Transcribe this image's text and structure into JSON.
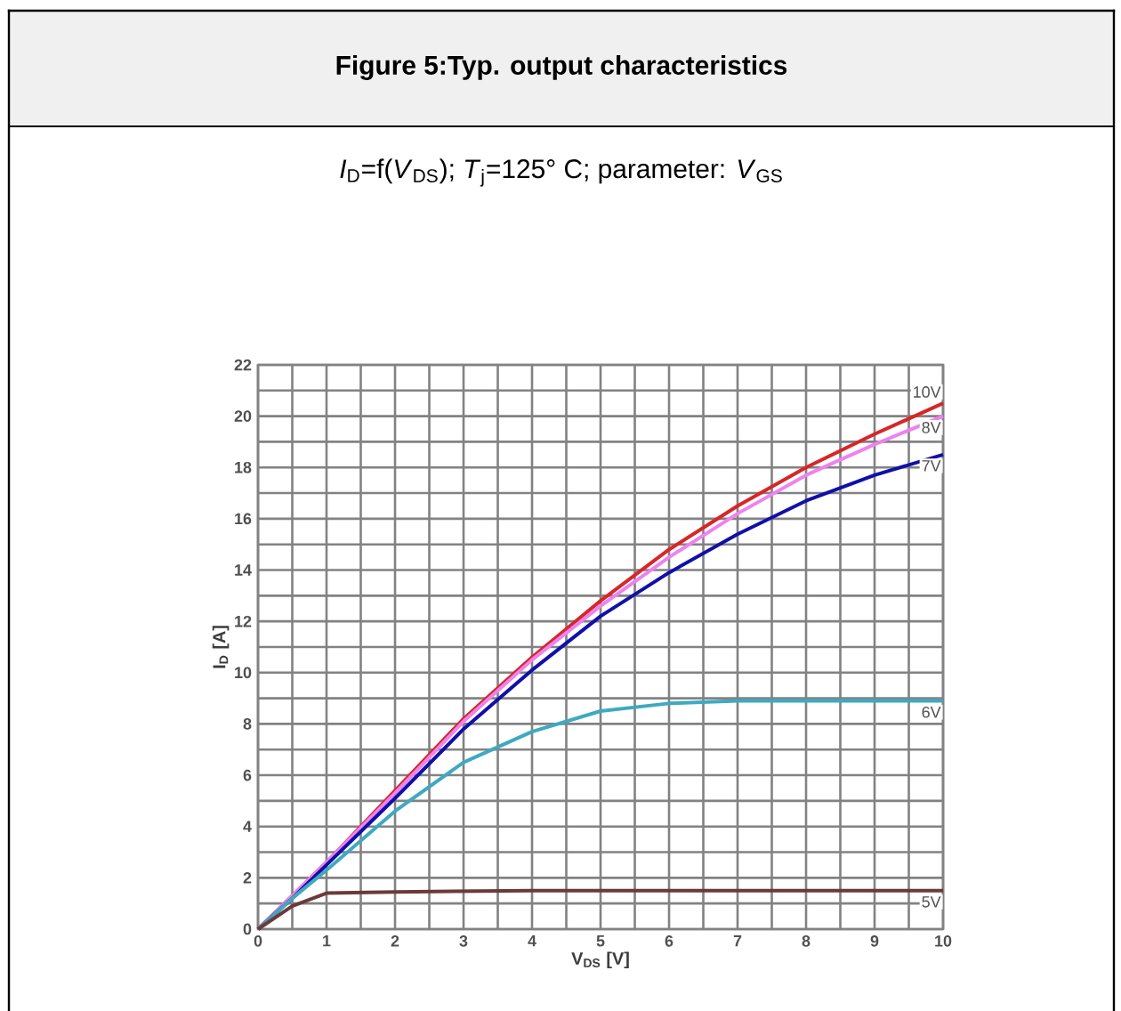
{
  "chart_data": {
    "type": "line",
    "title": "Figure 5:Typ. output characteristics",
    "subtitle": "*I*$_{D}$=f(*V*$_{DS}$); *T*$_{j}$=125° C; parameter: *V*$_{GS}$",
    "xlabel": "V$_{DS}$ [V]",
    "ylabel": "I$_{D}$ [A]",
    "xlim": [
      0,
      10
    ],
    "ylim": [
      0,
      22
    ],
    "xticks": [
      0,
      1,
      2,
      3,
      4,
      5,
      6,
      7,
      8,
      9,
      10
    ],
    "yticks": [
      0,
      2,
      4,
      6,
      8,
      10,
      12,
      14,
      16,
      18,
      20,
      22
    ],
    "grid": true,
    "marker": "none",
    "line_style": "solid",
    "series": [
      {
        "name": "10V",
        "color": "#d62728",
        "x": [
          0,
          0.5,
          1,
          2,
          3,
          4,
          5,
          6,
          7,
          8,
          9,
          10
        ],
        "values": [
          0,
          1.3,
          2.6,
          5.4,
          8.2,
          10.6,
          12.8,
          14.8,
          16.5,
          18.0,
          19.3,
          20.5
        ]
      },
      {
        "name": "8V",
        "color": "#ee82ee",
        "x": [
          0,
          0.5,
          1,
          2,
          3,
          4,
          5,
          6,
          7,
          8,
          9,
          10
        ],
        "values": [
          0,
          1.3,
          2.6,
          5.3,
          8.1,
          10.5,
          12.6,
          14.5,
          16.2,
          17.7,
          18.9,
          20.0
        ]
      },
      {
        "name": "7V",
        "color": "#1010a8",
        "x": [
          0,
          0.5,
          1,
          2,
          3,
          4,
          5,
          6,
          7,
          8,
          9,
          10
        ],
        "values": [
          0,
          1.2,
          2.5,
          5.1,
          7.8,
          10.1,
          12.2,
          13.9,
          15.4,
          16.7,
          17.7,
          18.5
        ]
      },
      {
        "name": "6V",
        "color": "#3fa9c0",
        "x": [
          0,
          0.5,
          1,
          2,
          3,
          4,
          5,
          6,
          7,
          8,
          9,
          10
        ],
        "values": [
          0,
          1.2,
          2.3,
          4.6,
          6.5,
          7.7,
          8.5,
          8.8,
          8.9,
          8.9,
          8.9,
          8.9
        ]
      },
      {
        "name": "5V",
        "color": "#6b3a3a",
        "x": [
          0,
          0.5,
          1,
          2,
          4,
          6,
          8,
          10
        ],
        "values": [
          0,
          0.9,
          1.4,
          1.45,
          1.5,
          1.5,
          1.5,
          1.5
        ]
      }
    ]
  }
}
